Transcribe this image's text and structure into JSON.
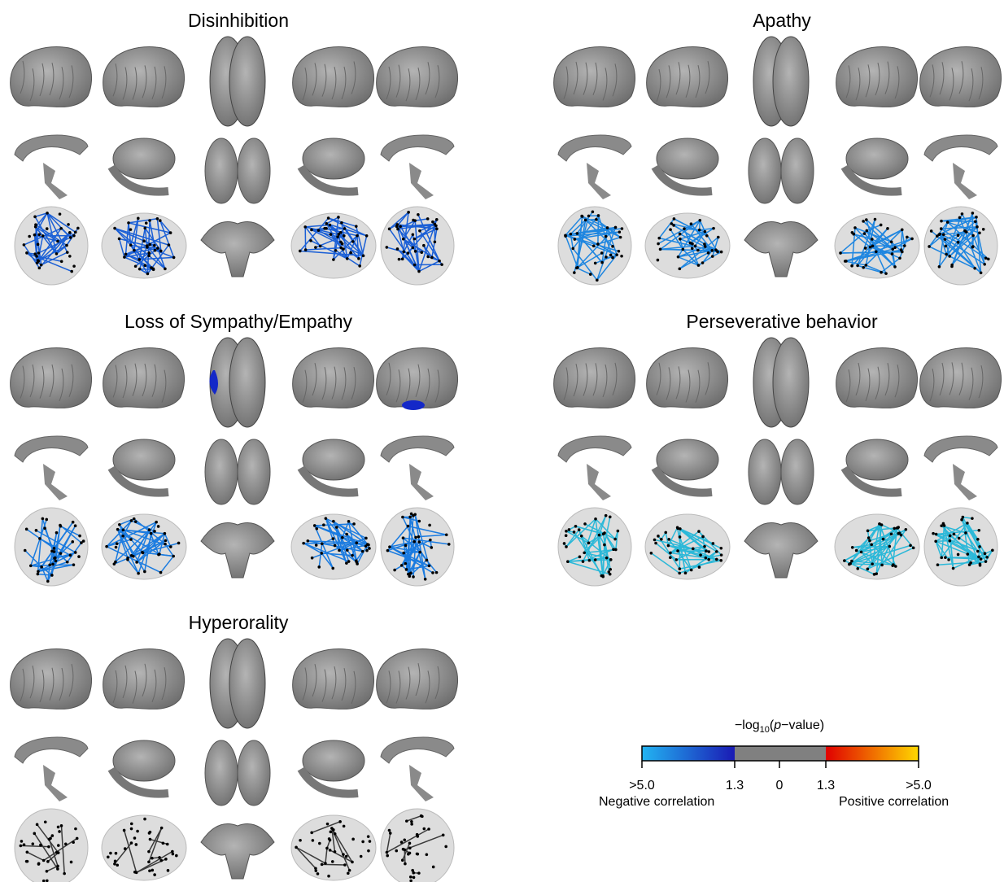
{
  "panels": [
    {
      "title": "Disinhibition",
      "edge_color": "#1a5fd6"
    },
    {
      "title": "Apathy",
      "edge_color": "#1f86e0"
    },
    {
      "title": "Loss of Sympathy/Empathy",
      "edge_color": "#1a7be0",
      "highlight": "#1428c8"
    },
    {
      "title": "Perseverative behavior",
      "edge_color": "#2bb8d8"
    },
    {
      "title": "Hyperorality",
      "edge_color": "#3a3a3a"
    }
  ],
  "legend": {
    "title_parts": [
      "−log",
      "10",
      "(",
      "p",
      "−value)"
    ],
    "tick_labels": [
      ">5.0",
      "1.3",
      "0",
      "1.3",
      ">5.0"
    ],
    "negative_label": "Negative correlation",
    "positive_label": "Positive correlation",
    "colors": [
      "#22b4f2",
      "#1a1ab4",
      "#808080",
      "#e00000",
      "#ffd800"
    ]
  }
}
